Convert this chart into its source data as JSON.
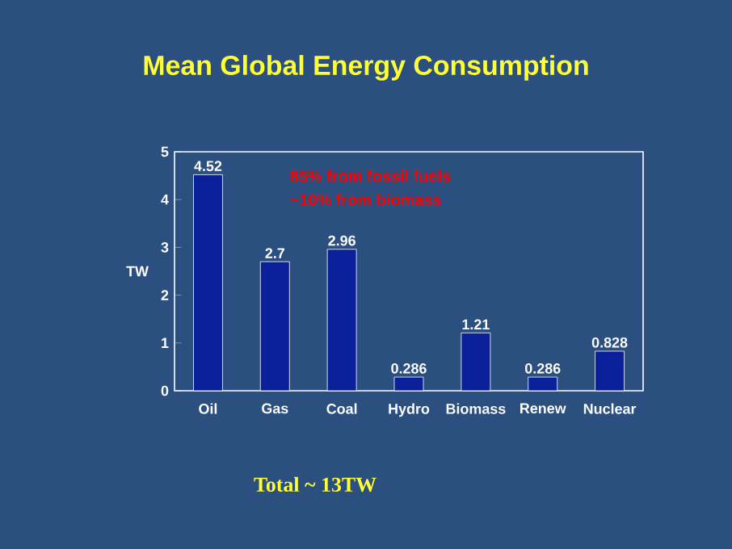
{
  "chart_data": {
    "type": "bar",
    "title": "Mean Global Energy Consumption",
    "ylabel": "TW",
    "categories": [
      "Oil",
      "Gas",
      "Coal",
      "Hydro",
      "Biomass",
      "Renew",
      "Nuclear"
    ],
    "values": [
      4.52,
      2.7,
      2.96,
      0.286,
      1.21,
      0.286,
      0.828
    ],
    "color": "#0a1f9a",
    "ylim": [
      0,
      5
    ],
    "yticks": [
      0,
      1,
      2,
      3,
      4,
      5
    ],
    "data_labels": true,
    "annotations": [
      "85% from fossil fuels",
      "~10% from biomass",
      "Total ~ 13TW"
    ]
  }
}
